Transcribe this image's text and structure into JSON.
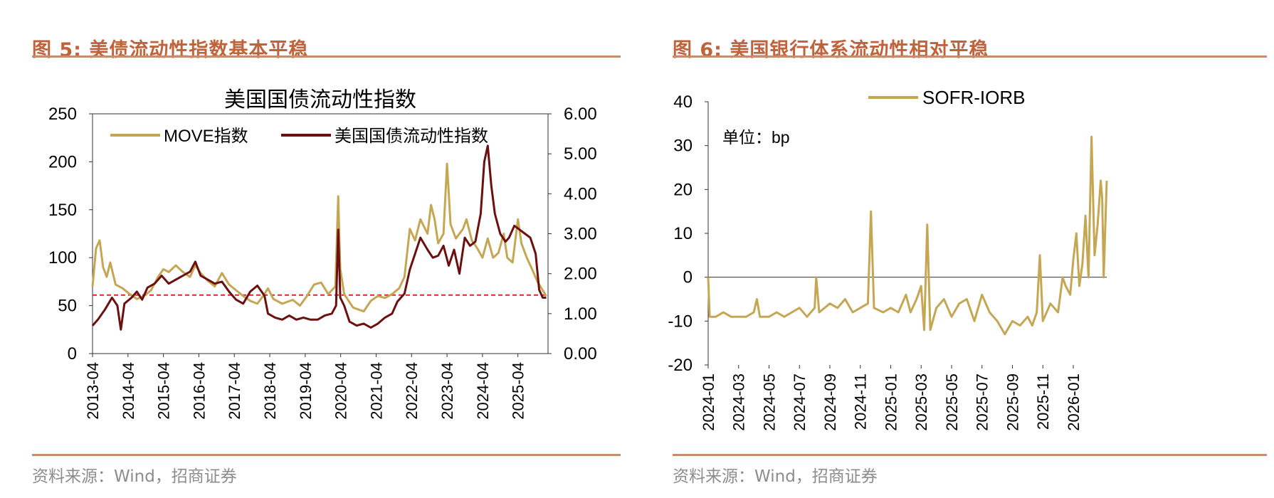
{
  "colors": {
    "accent": "#c0623a",
    "rule": "#c98a6e",
    "move": "#c5a653",
    "liq": "#6b0f0f",
    "sofr": "#c5a653",
    "ref_line": "#d62828",
    "source": "#8c8c8c"
  },
  "left_figure": {
    "label": "图 5:",
    "title": "美债流动性指数基本平稳",
    "source": "资料来源：Wind，招商证券"
  },
  "right_figure": {
    "label": "图 6:",
    "title": "美国银行体系流动性相对平稳",
    "source": "资料来源：Wind，招商证券"
  },
  "chart_data": [
    {
      "type": "line",
      "title": "美国国债流动性指数",
      "legend": [
        "MOVE指数",
        "美国国债流动性指数"
      ],
      "legend_position": "top",
      "x_tick_labels": [
        "2013-04",
        "2014-04",
        "2015-04",
        "2016-04",
        "2017-04",
        "2018-04",
        "2019-04",
        "2020-04",
        "2021-04",
        "2022-04",
        "2023-04",
        "2024-04",
        "2025-04"
      ],
      "y_left": {
        "ticks": [
          "0",
          "50",
          "100",
          "150",
          "200",
          "250"
        ],
        "range": [
          0,
          250
        ]
      },
      "y_right": {
        "ticks": [
          "0.00",
          "1.00",
          "2.00",
          "3.00",
          "4.00",
          "5.00",
          "6.00"
        ],
        "range": [
          0,
          6
        ]
      },
      "x_range": [
        2013.25,
        2026.1
      ],
      "reference_line": {
        "axis": "left",
        "value": 61,
        "style": "dashed"
      },
      "series": [
        {
          "name": "MOVE指数",
          "axis": "left",
          "points": [
            [
              2013.25,
              70
            ],
            [
              2013.35,
              110
            ],
            [
              2013.45,
              118
            ],
            [
              2013.55,
              90
            ],
            [
              2013.65,
              80
            ],
            [
              2013.75,
              95
            ],
            [
              2013.9,
              72
            ],
            [
              2014.1,
              68
            ],
            [
              2014.3,
              62
            ],
            [
              2014.5,
              57
            ],
            [
              2014.7,
              60
            ],
            [
              2014.9,
              66
            ],
            [
              2015.1,
              80
            ],
            [
              2015.25,
              88
            ],
            [
              2015.4,
              85
            ],
            [
              2015.6,
              92
            ],
            [
              2015.8,
              85
            ],
            [
              2016.0,
              80
            ],
            [
              2016.15,
              92
            ],
            [
              2016.3,
              84
            ],
            [
              2016.5,
              76
            ],
            [
              2016.7,
              70
            ],
            [
              2016.9,
              84
            ],
            [
              2017.1,
              72
            ],
            [
              2017.3,
              66
            ],
            [
              2017.5,
              60
            ],
            [
              2017.7,
              55
            ],
            [
              2017.9,
              52
            ],
            [
              2018.1,
              62
            ],
            [
              2018.2,
              68
            ],
            [
              2018.35,
              57
            ],
            [
              2018.6,
              52
            ],
            [
              2018.9,
              56
            ],
            [
              2019.1,
              50
            ],
            [
              2019.3,
              60
            ],
            [
              2019.5,
              72
            ],
            [
              2019.7,
              74
            ],
            [
              2019.9,
              62
            ],
            [
              2020.1,
              70
            ],
            [
              2020.18,
              164
            ],
            [
              2020.24,
              88
            ],
            [
              2020.35,
              62
            ],
            [
              2020.6,
              48
            ],
            [
              2020.9,
              44
            ],
            [
              2021.1,
              55
            ],
            [
              2021.3,
              60
            ],
            [
              2021.5,
              58
            ],
            [
              2021.7,
              62
            ],
            [
              2021.9,
              68
            ],
            [
              2022.05,
              80
            ],
            [
              2022.2,
              130
            ],
            [
              2022.35,
              118
            ],
            [
              2022.5,
              140
            ],
            [
              2022.7,
              125
            ],
            [
              2022.8,
              155
            ],
            [
              2022.9,
              140
            ],
            [
              2023.0,
              115
            ],
            [
              2023.15,
              125
            ],
            [
              2023.25,
              198
            ],
            [
              2023.35,
              135
            ],
            [
              2023.5,
              120
            ],
            [
              2023.7,
              130
            ],
            [
              2023.8,
              140
            ],
            [
              2023.95,
              118
            ],
            [
              2024.1,
              110
            ],
            [
              2024.25,
              100
            ],
            [
              2024.4,
              120
            ],
            [
              2024.55,
              100
            ],
            [
              2024.7,
              105
            ],
            [
              2024.85,
              125
            ],
            [
              2024.95,
              100
            ],
            [
              2025.1,
              95
            ],
            [
              2025.25,
              140
            ],
            [
              2025.35,
              115
            ],
            [
              2025.5,
              100
            ],
            [
              2025.65,
              88
            ],
            [
              2025.8,
              75
            ],
            [
              2025.95,
              66
            ],
            [
              2026.05,
              60
            ]
          ]
        },
        {
          "name": "美国国债流动性指数",
          "axis": "right",
          "points": [
            [
              2013.25,
              0.7
            ],
            [
              2013.4,
              0.85
            ],
            [
              2013.6,
              1.1
            ],
            [
              2013.8,
              1.4
            ],
            [
              2013.95,
              1.2
            ],
            [
              2014.05,
              0.6
            ],
            [
              2014.15,
              1.25
            ],
            [
              2014.35,
              1.4
            ],
            [
              2014.5,
              1.55
            ],
            [
              2014.65,
              1.35
            ],
            [
              2014.8,
              1.65
            ],
            [
              2015.0,
              1.75
            ],
            [
              2015.2,
              1.95
            ],
            [
              2015.4,
              1.75
            ],
            [
              2015.6,
              1.85
            ],
            [
              2015.8,
              1.95
            ],
            [
              2016.0,
              2.05
            ],
            [
              2016.15,
              2.3
            ],
            [
              2016.3,
              1.95
            ],
            [
              2016.5,
              1.85
            ],
            [
              2016.7,
              1.75
            ],
            [
              2016.9,
              1.8
            ],
            [
              2017.1,
              1.55
            ],
            [
              2017.3,
              1.35
            ],
            [
              2017.5,
              1.25
            ],
            [
              2017.7,
              1.55
            ],
            [
              2017.9,
              1.7
            ],
            [
              2018.1,
              1.45
            ],
            [
              2018.2,
              1.0
            ],
            [
              2018.4,
              0.9
            ],
            [
              2018.6,
              0.85
            ],
            [
              2018.8,
              0.95
            ],
            [
              2019.0,
              0.85
            ],
            [
              2019.2,
              0.9
            ],
            [
              2019.4,
              0.85
            ],
            [
              2019.6,
              0.85
            ],
            [
              2019.8,
              0.95
            ],
            [
              2020.0,
              1.0
            ],
            [
              2020.12,
              1.2
            ],
            [
              2020.18,
              3.1
            ],
            [
              2020.24,
              1.4
            ],
            [
              2020.35,
              1.2
            ],
            [
              2020.5,
              0.8
            ],
            [
              2020.7,
              0.7
            ],
            [
              2020.9,
              0.75
            ],
            [
              2021.1,
              0.65
            ],
            [
              2021.3,
              0.75
            ],
            [
              2021.5,
              0.9
            ],
            [
              2021.7,
              1.0
            ],
            [
              2021.85,
              1.3
            ],
            [
              2022.05,
              1.5
            ],
            [
              2022.2,
              2.1
            ],
            [
              2022.35,
              2.5
            ],
            [
              2022.5,
              2.9
            ],
            [
              2022.7,
              2.6
            ],
            [
              2022.85,
              2.4
            ],
            [
              2023.0,
              2.45
            ],
            [
              2023.15,
              2.7
            ],
            [
              2023.3,
              2.2
            ],
            [
              2023.45,
              2.6
            ],
            [
              2023.6,
              2.0
            ],
            [
              2023.75,
              2.9
            ],
            [
              2023.9,
              2.7
            ],
            [
              2024.05,
              2.8
            ],
            [
              2024.2,
              3.5
            ],
            [
              2024.3,
              4.8
            ],
            [
              2024.4,
              5.2
            ],
            [
              2024.5,
              4.2
            ],
            [
              2024.6,
              3.5
            ],
            [
              2024.75,
              3.0
            ],
            [
              2024.9,
              2.8
            ],
            [
              2025.0,
              2.9
            ],
            [
              2025.15,
              3.2
            ],
            [
              2025.3,
              3.1
            ],
            [
              2025.45,
              3.0
            ],
            [
              2025.6,
              2.9
            ],
            [
              2025.75,
              2.5
            ],
            [
              2025.85,
              1.6
            ],
            [
              2025.95,
              1.4
            ],
            [
              2026.05,
              1.4
            ]
          ]
        }
      ]
    },
    {
      "type": "line",
      "title": "",
      "legend": [
        "SOFR-IORB"
      ],
      "legend_position": "top",
      "annotation": "单位：bp",
      "x_tick_labels": [
        "2024-01",
        "2024-03",
        "2024-05",
        "2024-07",
        "2024-09",
        "2024-11",
        "2025-01",
        "2025-03",
        "2025-05",
        "2025-07",
        "2025-09",
        "2025-11",
        "2026-01"
      ],
      "y": {
        "ticks": [
          "40",
          "30",
          "20",
          "10",
          "0",
          "-10",
          "-20"
        ],
        "range": [
          -20,
          40
        ]
      },
      "x_range": [
        0,
        26.2
      ],
      "series": [
        {
          "name": "SOFR-IORB",
          "points": [
            [
              0,
              0
            ],
            [
              0.1,
              -9
            ],
            [
              0.5,
              -9
            ],
            [
              1,
              -8
            ],
            [
              1.5,
              -9
            ],
            [
              2,
              -9
            ],
            [
              2.5,
              -9
            ],
            [
              3,
              -8
            ],
            [
              3.2,
              -5
            ],
            [
              3.4,
              -9
            ],
            [
              4,
              -9
            ],
            [
              4.5,
              -8
            ],
            [
              5,
              -9
            ],
            [
              5.5,
              -8
            ],
            [
              6,
              -7
            ],
            [
              6.5,
              -9
            ],
            [
              7,
              -7
            ],
            [
              7.1,
              0
            ],
            [
              7.3,
              -8
            ],
            [
              8,
              -6
            ],
            [
              8.5,
              -7
            ],
            [
              9,
              -5
            ],
            [
              9.5,
              -8
            ],
            [
              10,
              -7
            ],
            [
              10.5,
              -6
            ],
            [
              10.7,
              15
            ],
            [
              10.9,
              -7
            ],
            [
              11.5,
              -8
            ],
            [
              12,
              -7
            ],
            [
              12.5,
              -8
            ],
            [
              13,
              -4
            ],
            [
              13.3,
              -8
            ],
            [
              13.7,
              -5
            ],
            [
              14,
              -2
            ],
            [
              14.2,
              -12
            ],
            [
              14.4,
              12
            ],
            [
              14.6,
              -12
            ],
            [
              15,
              -7
            ],
            [
              15.5,
              -5
            ],
            [
              16,
              -9
            ],
            [
              16.5,
              -6
            ],
            [
              17,
              -5
            ],
            [
              17.5,
              -10
            ],
            [
              18,
              -4
            ],
            [
              18.5,
              -8
            ],
            [
              19,
              -10
            ],
            [
              19.5,
              -13
            ],
            [
              20,
              -10
            ],
            [
              20.5,
              -11
            ],
            [
              21,
              -9
            ],
            [
              21.3,
              -11
            ],
            [
              21.6,
              -8
            ],
            [
              21.8,
              5
            ],
            [
              22,
              -10
            ],
            [
              22.5,
              -6
            ],
            [
              23,
              -8
            ],
            [
              23.3,
              0
            ],
            [
              23.5,
              -2
            ],
            [
              23.8,
              -4
            ],
            [
              24,
              4
            ],
            [
              24.2,
              10
            ],
            [
              24.4,
              -2
            ],
            [
              24.6,
              3
            ],
            [
              24.8,
              14
            ],
            [
              25,
              0
            ],
            [
              25.2,
              32
            ],
            [
              25.4,
              5
            ],
            [
              25.6,
              12
            ],
            [
              25.8,
              22
            ],
            [
              25.9,
              18
            ],
            [
              26.0,
              0
            ],
            [
              26.2,
              22
            ]
          ]
        }
      ]
    }
  ]
}
